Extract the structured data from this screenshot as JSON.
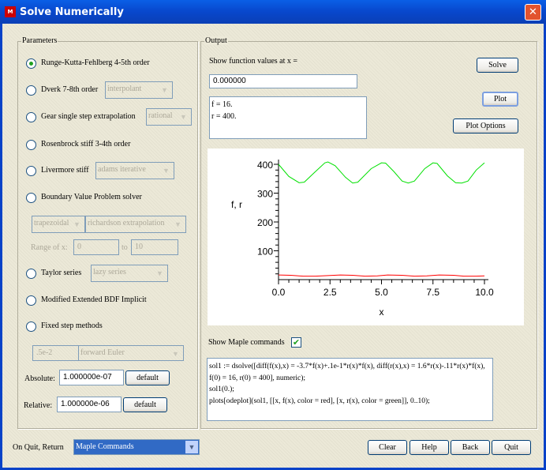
{
  "window": {
    "title": "Solve Numerically",
    "logo_text": "MAPLE",
    "close_icon": "close-icon"
  },
  "parameters": {
    "legend": "Parameters",
    "methods": [
      {
        "label": "Runge-Kutta-Fehlberg 4-5th order",
        "selected": true
      },
      {
        "label": "Dverk 7-8th order",
        "option": "interpolant"
      },
      {
        "label": "Gear single step extrapolation",
        "option": "rational"
      },
      {
        "label": "Rosenbrock stiff 3-4th order"
      },
      {
        "label": "Livermore stiff",
        "option": "adams iterative"
      },
      {
        "label": "Boundary Value Problem solver"
      },
      {
        "label": "Taylor series",
        "option": "lazy series"
      },
      {
        "label": "Modified Extended BDF Implicit"
      },
      {
        "label": "Fixed step methods"
      }
    ],
    "bvp_method": "trapezoidal",
    "bvp_extrap": "richardson extrapolation",
    "range_label": "Range of x:",
    "range_from": "0",
    "range_to_label": "to",
    "range_to": "10",
    "fixed_step": ".5e-2",
    "fixed_method": "forward Euler",
    "absolute_label": "Absolute:",
    "absolute_value": "1.000000e-07",
    "relative_label": "Relative:",
    "relative_value": "1.000000e-06",
    "default_label": "default"
  },
  "output": {
    "legend": "Output",
    "show_at_label": "Show function values at x =",
    "x_value": "0.000000",
    "values_text": "f = 16.\nr = 400.",
    "solve_label": "Solve",
    "plot_label": "Plot",
    "plot_options_label": "Plot Options",
    "show_maple_label": "Show Maple commands",
    "show_maple_checked": true,
    "commands": "sol1 := dsolve([diff(f(x),x) = -3.7*f(x)+.1e-1*r(x)*f(x), diff(r(x),x) = 1.6*r(x)-.11*r(x)*f(x),\nf(0) = 16, r(0) = 400], numeric);\nsol1(0.);\nplots[odeplot](sol1, [[x, f(x), color = red], [x, r(x), color = green]], 0..10);"
  },
  "chart_data": {
    "type": "line",
    "xlabel": "x",
    "ylabel": "f, r",
    "xlim": [
      0,
      10
    ],
    "ylim": [
      0,
      400
    ],
    "xticks": [
      "0.0",
      "2.5",
      "5.0",
      "7.5",
      "10.0"
    ],
    "yticks": [
      "100",
      "200",
      "300",
      "400"
    ],
    "grid": false,
    "series": [
      {
        "color": "#ff0000",
        "x": [
          0,
          0.6,
          1.2,
          1.8,
          2.4,
          3.0,
          3.6,
          4.2,
          4.8,
          5.3,
          6.0,
          6.6,
          7.2,
          7.8,
          8.5,
          9.0,
          9.6,
          10
        ],
        "y": [
          16,
          15,
          12,
          12,
          14,
          16,
          15,
          12,
          13,
          16,
          15,
          12,
          13,
          16,
          15,
          12,
          12,
          13
        ]
      },
      {
        "color": "#00e000",
        "x": [
          0,
          0.5,
          1.0,
          1.25,
          1.75,
          2.25,
          2.4,
          2.75,
          3.25,
          3.6,
          3.85,
          4.5,
          5.0,
          5.2,
          5.6,
          6.0,
          6.3,
          6.6,
          7.1,
          7.5,
          7.7,
          8.2,
          8.6,
          8.9,
          9.2,
          9.6,
          10
        ],
        "y": [
          400,
          358,
          336,
          338,
          372,
          405,
          408,
          395,
          355,
          335,
          338,
          385,
          405,
          404,
          375,
          342,
          335,
          342,
          385,
          405,
          403,
          360,
          336,
          335,
          342,
          380,
          405
        ]
      }
    ]
  },
  "footer": {
    "on_quit_label": "On Quit, Return",
    "on_quit_value": "Maple Commands",
    "buttons": [
      "Clear",
      "Help",
      "Back",
      "Quit"
    ]
  }
}
